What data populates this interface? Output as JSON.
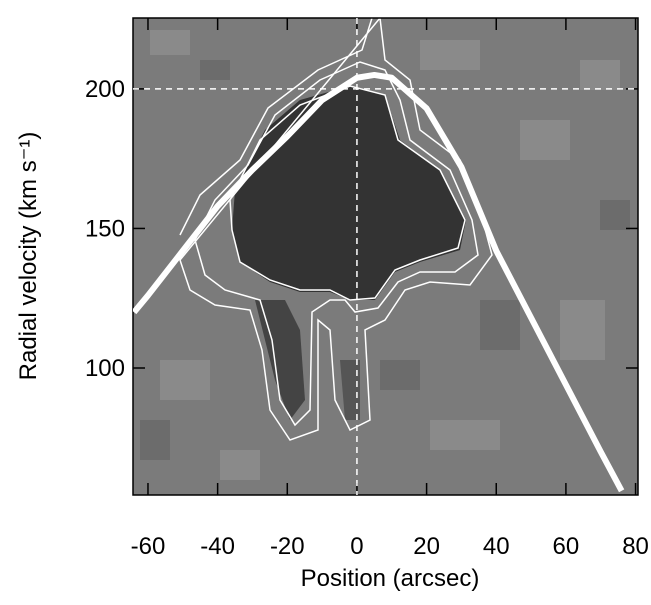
{
  "chart_data": {
    "type": "line",
    "xlabel": "Position (arcsec)",
    "ylabel": "Radial velocity (km s⁻¹)",
    "xlim": [
      -64.3,
      80.7
    ],
    "ylim": [
      54.5,
      225.4
    ],
    "xticks": [
      -60,
      -40,
      -20,
      0,
      20,
      40,
      60,
      80
    ],
    "yticks": [
      100,
      150,
      200
    ],
    "hline": 200,
    "vline": 0,
    "series": [
      {
        "color": "#ffffff",
        "x": [
          -64,
          -60,
          -50,
          -40,
          -30,
          -20,
          -10,
          0,
          5,
          10,
          20,
          30,
          40,
          50,
          60,
          70,
          76
        ],
        "values": [
          120,
          126,
          142,
          158,
          171,
          183,
          196,
          204,
          205,
          204,
          193,
          172,
          142,
          118,
          94,
          70,
          56
        ]
      }
    ]
  }
}
